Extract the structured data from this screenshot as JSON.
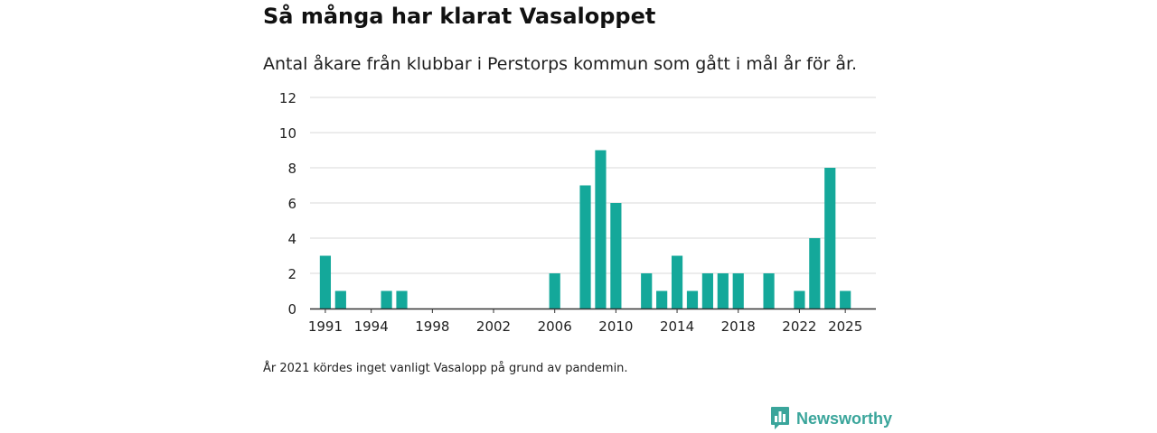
{
  "title": "Så många har klarat Vasaloppet",
  "subtitle": "Antal åkare från klubbar i Perstorps kommun som gått i mål år för år.",
  "note": "År 2021 kördes inget vanligt Vasalopp på grund av pandemin.",
  "brand": {
    "name": "Newsworthy",
    "color": "#3aa59b"
  },
  "colors": {
    "bar": "#14a89a",
    "grid": "#d9d9d9",
    "axis": "#333333",
    "tick_text": "#222222"
  },
  "chart_data": {
    "type": "bar",
    "title": "Så många har klarat Vasaloppet",
    "xlabel": "",
    "ylabel": "",
    "grid": true,
    "ylim": [
      0,
      12
    ],
    "yticks": [
      0,
      2,
      4,
      6,
      8,
      10,
      12
    ],
    "xrange": [
      1990,
      2027
    ],
    "xticks": [
      1991,
      1994,
      1998,
      2002,
      2006,
      2010,
      2014,
      2018,
      2022,
      2025
    ],
    "categories": [
      1991,
      1992,
      1995,
      1996,
      2006,
      2008,
      2009,
      2010,
      2012,
      2013,
      2014,
      2015,
      2016,
      2017,
      2018,
      2020,
      2022,
      2023,
      2024,
      2025
    ],
    "values": [
      3,
      1,
      1,
      1,
      2,
      7,
      9,
      6,
      2,
      1,
      3,
      1,
      2,
      2,
      2,
      2,
      1,
      4,
      8,
      1
    ]
  }
}
